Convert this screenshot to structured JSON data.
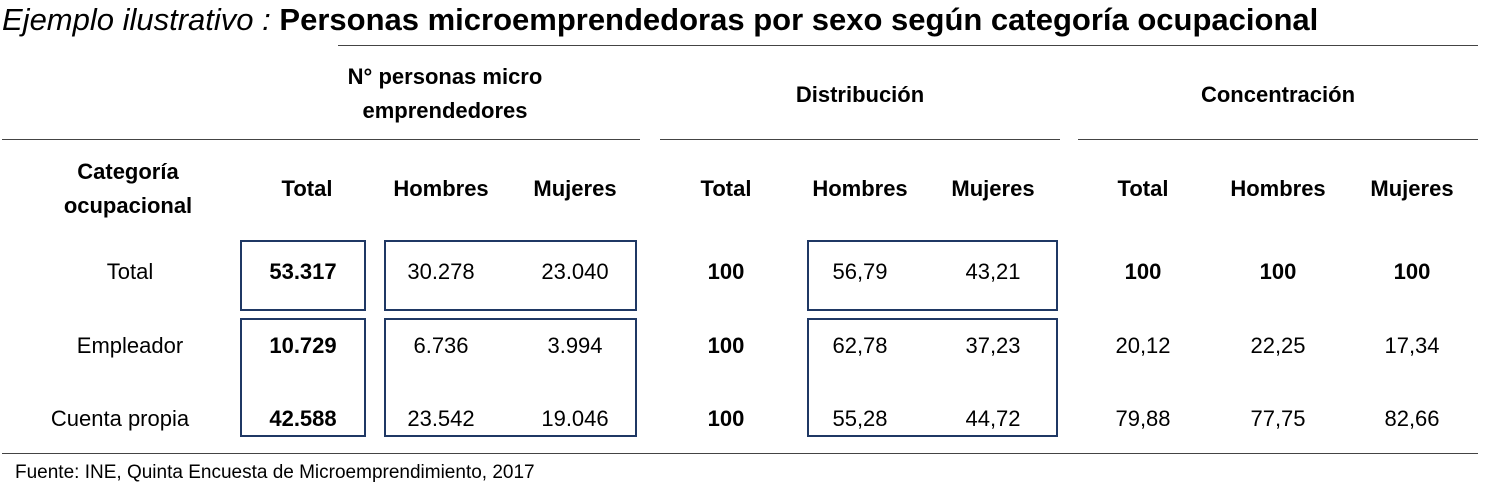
{
  "title": {
    "prefix": "Ejemplo ilustrativo :",
    "text": "Personas microemprendedoras por sexo según categoría ocupacional"
  },
  "groups": {
    "personas_line1": "N° personas micro",
    "personas_line2": "emprendedores",
    "distribucion": "Distribución",
    "concentracion": "Concentración"
  },
  "columns": {
    "categoria_line1": "Categoría",
    "categoria_line2": "ocupacional",
    "total": "Total",
    "hombres": "Hombres",
    "mujeres": "Mujeres"
  },
  "rows": [
    {
      "label": "Total",
      "n_total": "53.317",
      "n_hombres": "30.278",
      "n_mujeres": "23.040",
      "d_total": "100",
      "d_hombres": "56,79",
      "d_mujeres": "43,21",
      "c_total": "100",
      "c_hombres": "100",
      "c_mujeres": "100"
    },
    {
      "label": "Empleador",
      "n_total": "10.729",
      "n_hombres": "6.736",
      "n_mujeres": "3.994",
      "d_total": "100",
      "d_hombres": "62,78",
      "d_mujeres": "37,23",
      "c_total": "20,12",
      "c_hombres": "22,25",
      "c_mujeres": "17,34"
    },
    {
      "label": "Cuenta propia",
      "n_total": "42.588",
      "n_hombres": "23.542",
      "n_mujeres": "19.046",
      "d_total": "100",
      "d_hombres": "55,28",
      "d_mujeres": "44,72",
      "c_total": "79,88",
      "c_hombres": "77,75",
      "c_mujeres": "82,66"
    }
  ],
  "source": "Fuente: INE, Quinta Encuesta de Microemprendimiento, 2017",
  "colors": {
    "box_border": "#1f3864",
    "rule": "#444444"
  }
}
